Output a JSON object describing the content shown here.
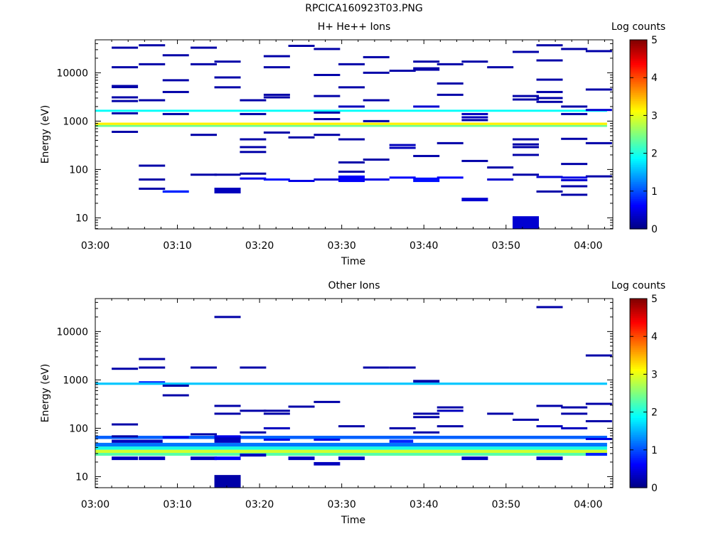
{
  "figure_title": "RPCICA160923T03.PNG",
  "chart_data": [
    {
      "type": "heatmap",
      "title": "H+ He++ Ions",
      "xlabel": "Time",
      "ylabel": "Energy (eV)",
      "x_ticks": [
        "03:00",
        "03:10",
        "03:20",
        "03:30",
        "03:40",
        "03:50",
        "04:00"
      ],
      "x_range_min": [
        0,
        63
      ],
      "y_ticks": [
        "10",
        "100",
        "1000",
        "10000"
      ],
      "y_range_ev": [
        5.9,
        48000
      ],
      "y_scale": "log",
      "colorbar": {
        "label": "Log counts",
        "range": [
          0,
          5
        ],
        "ticks": [
          "0",
          "1",
          "2",
          "3",
          "4",
          "5"
        ]
      },
      "steady_bands": [
        {
          "ev_lo": 830,
          "ev_hi": 930,
          "log_counts": 3.2
        },
        {
          "ev_lo": 760,
          "ev_hi": 830,
          "log_counts": 2.4
        },
        {
          "ev_lo": 1560,
          "ev_hi": 1720,
          "log_counts": 1.9
        }
      ],
      "blocks": [
        {
          "t": 14.5,
          "dt": 3.2,
          "ev_lo": 32,
          "ev_hi": 42,
          "log_counts": 0.3
        },
        {
          "t": 50.8,
          "dt": 3.2,
          "ev_lo": 6,
          "ev_hi": 10.8,
          "log_counts": 0.4
        },
        {
          "t": 44.6,
          "dt": 3.2,
          "ev_lo": 22,
          "ev_hi": 26,
          "log_counts": 0.4
        },
        {
          "t": 8.2,
          "dt": 3.2,
          "ev_lo": 33,
          "ev_hi": 37,
          "log_counts": 0.8
        },
        {
          "t": 38.7,
          "dt": 3.2,
          "ev_lo": 11000,
          "ev_hi": 13000,
          "log_counts": 0.2
        },
        {
          "t": 2.0,
          "dt": 3.2,
          "ev_lo": 4800,
          "ev_hi": 5600,
          "log_counts": 0.2
        },
        {
          "t": 29.6,
          "dt": 3.2,
          "ev_lo": 55,
          "ev_hi": 75,
          "log_counts": 0.6
        },
        {
          "t": 38.7,
          "dt": 3.2,
          "ev_lo": 55,
          "ev_hi": 68,
          "log_counts": 0.7
        }
      ],
      "lines": [
        {
          "t": 2.0,
          "ev": 33000,
          "c": 0.2
        },
        {
          "t": 5.3,
          "ev": 37000,
          "c": 0.2
        },
        {
          "t": 8.2,
          "ev": 23000,
          "c": 0.2
        },
        {
          "t": 11.6,
          "ev": 33000,
          "c": 0.2
        },
        {
          "t": 14.5,
          "ev": 17000,
          "c": 0.2
        },
        {
          "t": 20.5,
          "ev": 22000,
          "c": 0.2
        },
        {
          "t": 23.5,
          "ev": 36000,
          "c": 0.2
        },
        {
          "t": 26.6,
          "ev": 31000,
          "c": 0.2
        },
        {
          "t": 32.6,
          "ev": 21000,
          "c": 0.2
        },
        {
          "t": 38.7,
          "ev": 17000,
          "c": 0.2
        },
        {
          "t": 44.6,
          "ev": 17000,
          "c": 0.2
        },
        {
          "t": 50.8,
          "ev": 27000,
          "c": 0.2
        },
        {
          "t": 53.7,
          "ev": 37000,
          "c": 0.2
        },
        {
          "t": 56.7,
          "ev": 31000,
          "c": 0.2
        },
        {
          "t": 59.7,
          "ev": 28000,
          "c": 0.2
        },
        {
          "t": 2.0,
          "ev": 13000,
          "c": 0.2
        },
        {
          "t": 5.3,
          "ev": 15000,
          "c": 0.2
        },
        {
          "t": 11.6,
          "ev": 15000,
          "c": 0.2
        },
        {
          "t": 20.5,
          "ev": 13000,
          "c": 0.2
        },
        {
          "t": 29.6,
          "ev": 15000,
          "c": 0.2
        },
        {
          "t": 35.8,
          "ev": 11000,
          "c": 0.2
        },
        {
          "t": 41.6,
          "ev": 15000,
          "c": 0.2
        },
        {
          "t": 47.7,
          "ev": 13000,
          "c": 0.2
        },
        {
          "t": 53.7,
          "ev": 18000,
          "c": 0.2
        },
        {
          "t": 8.2,
          "ev": 7000,
          "c": 0.2
        },
        {
          "t": 14.5,
          "ev": 8000,
          "c": 0.2
        },
        {
          "t": 26.6,
          "ev": 9000,
          "c": 0.2
        },
        {
          "t": 32.6,
          "ev": 10000,
          "c": 0.2
        },
        {
          "t": 41.6,
          "ev": 6000,
          "c": 0.2
        },
        {
          "t": 53.7,
          "ev": 7200,
          "c": 0.2
        },
        {
          "t": 8.2,
          "ev": 4000,
          "c": 0.2
        },
        {
          "t": 14.5,
          "ev": 5000,
          "c": 0.2
        },
        {
          "t": 29.6,
          "ev": 5000,
          "c": 0.2
        },
        {
          "t": 41.6,
          "ev": 3500,
          "c": 0.2
        },
        {
          "t": 53.7,
          "ev": 4000,
          "c": 0.2
        },
        {
          "t": 59.7,
          "ev": 4500,
          "c": 0.2
        },
        {
          "t": 2.0,
          "ev": 3100,
          "c": 0.2
        },
        {
          "t": 2.0,
          "ev": 2600,
          "c": 0.2
        },
        {
          "t": 5.3,
          "ev": 2700,
          "c": 0.2
        },
        {
          "t": 17.6,
          "ev": 2700,
          "c": 0.2
        },
        {
          "t": 20.5,
          "ev": 3500,
          "c": 0.2
        },
        {
          "t": 20.5,
          "ev": 3100,
          "c": 0.2
        },
        {
          "t": 26.6,
          "ev": 3300,
          "c": 0.2
        },
        {
          "t": 32.6,
          "ev": 2700,
          "c": 0.2
        },
        {
          "t": 50.8,
          "ev": 3300,
          "c": 0.2
        },
        {
          "t": 50.8,
          "ev": 2800,
          "c": 0.2
        },
        {
          "t": 53.7,
          "ev": 2500,
          "c": 0.2
        },
        {
          "t": 53.7,
          "ev": 3000,
          "c": 0.2
        },
        {
          "t": 29.6,
          "ev": 2000,
          "c": 0.3
        },
        {
          "t": 38.7,
          "ev": 2000,
          "c": 0.4
        },
        {
          "t": 56.7,
          "ev": 2000,
          "c": 0.2
        },
        {
          "t": 2.0,
          "ev": 1450,
          "c": 0.2
        },
        {
          "t": 8.2,
          "ev": 1400,
          "c": 0.2
        },
        {
          "t": 17.6,
          "ev": 1400,
          "c": 0.2
        },
        {
          "t": 26.6,
          "ev": 1500,
          "c": 0.2
        },
        {
          "t": 44.6,
          "ev": 1400,
          "c": 0.3
        },
        {
          "t": 44.6,
          "ev": 1200,
          "c": 0.3
        },
        {
          "t": 56.7,
          "ev": 1400,
          "c": 0.2
        },
        {
          "t": 59.7,
          "ev": 1700,
          "c": 0.4
        },
        {
          "t": 26.6,
          "ev": 1100,
          "c": 0.2
        },
        {
          "t": 32.6,
          "ev": 1000,
          "c": 0.2
        },
        {
          "t": 44.6,
          "ev": 1050,
          "c": 0.2
        },
        {
          "t": 2.0,
          "ev": 600,
          "c": 0.2
        },
        {
          "t": 11.6,
          "ev": 520,
          "c": 0.2
        },
        {
          "t": 17.6,
          "ev": 420,
          "c": 0.2
        },
        {
          "t": 20.5,
          "ev": 580,
          "c": 0.2
        },
        {
          "t": 23.5,
          "ev": 460,
          "c": 0.2
        },
        {
          "t": 26.6,
          "ev": 520,
          "c": 0.2
        },
        {
          "t": 29.6,
          "ev": 420,
          "c": 0.2
        },
        {
          "t": 35.8,
          "ev": 320,
          "c": 0.3
        },
        {
          "t": 35.8,
          "ev": 280,
          "c": 0.3
        },
        {
          "t": 41.6,
          "ev": 350,
          "c": 0.2
        },
        {
          "t": 50.8,
          "ev": 420,
          "c": 0.2
        },
        {
          "t": 50.8,
          "ev": 330,
          "c": 0.2
        },
        {
          "t": 50.8,
          "ev": 290,
          "c": 0.2
        },
        {
          "t": 56.7,
          "ev": 430,
          "c": 0.2
        },
        {
          "t": 59.7,
          "ev": 350,
          "c": 0.2
        },
        {
          "t": 17.6,
          "ev": 290,
          "c": 0.2
        },
        {
          "t": 17.6,
          "ev": 230,
          "c": 0.2
        },
        {
          "t": 38.7,
          "ev": 190,
          "c": 0.2
        },
        {
          "t": 29.6,
          "ev": 140,
          "c": 0.2
        },
        {
          "t": 32.6,
          "ev": 160,
          "c": 0.2
        },
        {
          "t": 44.6,
          "ev": 150,
          "c": 0.2
        },
        {
          "t": 50.8,
          "ev": 200,
          "c": 0.2
        },
        {
          "t": 56.7,
          "ev": 130,
          "c": 0.2
        },
        {
          "t": 5.3,
          "ev": 120,
          "c": 0.2
        },
        {
          "t": 29.6,
          "ev": 90,
          "c": 0.2
        },
        {
          "t": 47.7,
          "ev": 110,
          "c": 0.2
        },
        {
          "t": 11.6,
          "ev": 78,
          "c": 0.2
        },
        {
          "t": 14.5,
          "ev": 78,
          "c": 0.2
        },
        {
          "t": 17.6,
          "ev": 82,
          "c": 0.2
        },
        {
          "t": 50.8,
          "ev": 78,
          "c": 0.2
        },
        {
          "t": 59.7,
          "ev": 72,
          "c": 0.2
        },
        {
          "t": 17.6,
          "ev": 65,
          "c": 0.5
        },
        {
          "t": 20.5,
          "ev": 62,
          "c": 0.7
        },
        {
          "t": 23.5,
          "ev": 58,
          "c": 0.5
        },
        {
          "t": 26.6,
          "ev": 62,
          "c": 0.4
        },
        {
          "t": 32.6,
          "ev": 62,
          "c": 0.5
        },
        {
          "t": 35.8,
          "ev": 68,
          "c": 0.6
        },
        {
          "t": 41.6,
          "ev": 68,
          "c": 0.6
        },
        {
          "t": 47.7,
          "ev": 62,
          "c": 0.4
        },
        {
          "t": 53.7,
          "ev": 70,
          "c": 0.4
        },
        {
          "t": 56.7,
          "ev": 68,
          "c": 0.5
        },
        {
          "t": 56.7,
          "ev": 60,
          "c": 0.4
        },
        {
          "t": 5.3,
          "ev": 62,
          "c": 0.2
        },
        {
          "t": 5.3,
          "ev": 40,
          "c": 0.2
        },
        {
          "t": 56.7,
          "ev": 45,
          "c": 0.2
        },
        {
          "t": 56.7,
          "ev": 30,
          "c": 0.2
        },
        {
          "t": 53.7,
          "ev": 35,
          "c": 0.2
        }
      ]
    },
    {
      "type": "heatmap",
      "title": "Other Ions",
      "xlabel": "Time",
      "ylabel": "Energy (eV)",
      "x_ticks": [
        "03:00",
        "03:10",
        "03:20",
        "03:30",
        "03:40",
        "03:50",
        "04:00"
      ],
      "x_range_min": [
        0,
        63
      ],
      "y_ticks": [
        "10",
        "100",
        "1000",
        "10000"
      ],
      "y_range_ev": [
        5.9,
        48000
      ],
      "y_scale": "log",
      "colorbar": {
        "label": "Log counts",
        "range": [
          0,
          5
        ],
        "ticks": [
          "0",
          "1",
          "2",
          "3",
          "4",
          "5"
        ]
      },
      "steady_bands": [
        {
          "ev_lo": 27,
          "ev_hi": 31,
          "log_counts": 2.3
        },
        {
          "ev_lo": 31,
          "ev_hi": 36,
          "log_counts": 2.9
        },
        {
          "ev_lo": 36,
          "ev_hi": 42,
          "log_counts": 2.0
        },
        {
          "ev_lo": 42,
          "ev_hi": 50,
          "log_counts": 1.2
        },
        {
          "ev_lo": 60,
          "ev_hi": 70,
          "log_counts": 1.1
        },
        {
          "ev_lo": 790,
          "ev_hi": 880,
          "log_counts": 1.6
        }
      ],
      "blocks": [
        {
          "t": 14.5,
          "dt": 3.2,
          "ev_lo": 6,
          "ev_hi": 10.8,
          "log_counts": 0.2
        },
        {
          "t": 2.0,
          "dt": 3.2,
          "ev_lo": 22,
          "ev_hi": 26,
          "log_counts": 0.3
        },
        {
          "t": 5.3,
          "dt": 3.2,
          "ev_lo": 22,
          "ev_hi": 26,
          "log_counts": 0.3
        },
        {
          "t": 11.6,
          "dt": 3.2,
          "ev_lo": 22,
          "ev_hi": 26,
          "log_counts": 0.3
        },
        {
          "t": 14.5,
          "dt": 3.2,
          "ev_lo": 22,
          "ev_hi": 26,
          "log_counts": 0.6
        },
        {
          "t": 17.6,
          "dt": 3.2,
          "ev_lo": 26,
          "ev_hi": 30,
          "log_counts": 0.3
        },
        {
          "t": 23.5,
          "dt": 3.2,
          "ev_lo": 22,
          "ev_hi": 26,
          "log_counts": 0.3
        },
        {
          "t": 29.6,
          "dt": 3.2,
          "ev_lo": 22,
          "ev_hi": 26,
          "log_counts": 0.3
        },
        {
          "t": 26.6,
          "dt": 3.2,
          "ev_lo": 17,
          "ev_hi": 20,
          "log_counts": 0.3
        },
        {
          "t": 44.6,
          "dt": 3.2,
          "ev_lo": 22,
          "ev_hi": 26,
          "log_counts": 0.3
        },
        {
          "t": 53.7,
          "dt": 3.2,
          "ev_lo": 22,
          "ev_hi": 26,
          "log_counts": 0.3
        },
        {
          "t": 59.7,
          "dt": 2.6,
          "ev_lo": 27,
          "ev_hi": 31,
          "log_counts": 0.8
        },
        {
          "t": 2.0,
          "dt": 6.2,
          "ev_lo": 50,
          "ev_hi": 58,
          "log_counts": 0.3
        },
        {
          "t": 14.5,
          "dt": 3.2,
          "ev_lo": 50,
          "ev_hi": 70,
          "log_counts": 0.3
        },
        {
          "t": 35.8,
          "dt": 2.9,
          "ev_lo": 50,
          "ev_hi": 58,
          "log_counts": 0.8
        },
        {
          "t": 38.7,
          "dt": 3.2,
          "ev_lo": 880,
          "ev_hi": 1000,
          "log_counts": 0.2
        },
        {
          "t": 8.2,
          "dt": 3.2,
          "ev_lo": 720,
          "ev_hi": 800,
          "log_counts": 0.2
        },
        {
          "t": 5.3,
          "dt": 3.2,
          "ev_lo": 880,
          "ev_hi": 940,
          "log_counts": 0.8
        }
      ],
      "lines": [
        {
          "t": 14.5,
          "ev": 20000,
          "c": 0.2
        },
        {
          "t": 53.7,
          "ev": 32000,
          "c": 0.2
        },
        {
          "t": 59.7,
          "ev": 3200,
          "c": 0.2
        },
        {
          "t": 5.3,
          "ev": 2700,
          "c": 0.2
        },
        {
          "t": 2.0,
          "ev": 1700,
          "c": 0.2
        },
        {
          "t": 5.3,
          "ev": 1800,
          "c": 0.2
        },
        {
          "t": 11.6,
          "ev": 1800,
          "c": 0.2
        },
        {
          "t": 17.6,
          "ev": 1800,
          "c": 0.2
        },
        {
          "t": 32.6,
          "ev": 1800,
          "c": 0.2
        },
        {
          "t": 35.8,
          "ev": 1800,
          "c": 0.2
        },
        {
          "t": 8.2,
          "ev": 480,
          "c": 0.2
        },
        {
          "t": 14.5,
          "ev": 290,
          "c": 0.2
        },
        {
          "t": 26.6,
          "ev": 350,
          "c": 0.2
        },
        {
          "t": 23.5,
          "ev": 280,
          "c": 0.2
        },
        {
          "t": 41.6,
          "ev": 270,
          "c": 0.2
        },
        {
          "t": 41.6,
          "ev": 230,
          "c": 0.3
        },
        {
          "t": 53.7,
          "ev": 290,
          "c": 0.2
        },
        {
          "t": 56.7,
          "ev": 270,
          "c": 0.2
        },
        {
          "t": 59.7,
          "ev": 320,
          "c": 0.2
        },
        {
          "t": 14.5,
          "ev": 200,
          "c": 0.2
        },
        {
          "t": 17.6,
          "ev": 230,
          "c": 0.2
        },
        {
          "t": 20.5,
          "ev": 230,
          "c": 0.2
        },
        {
          "t": 20.5,
          "ev": 200,
          "c": 0.2
        },
        {
          "t": 38.7,
          "ev": 200,
          "c": 0.2
        },
        {
          "t": 38.7,
          "ev": 170,
          "c": 0.2
        },
        {
          "t": 47.7,
          "ev": 200,
          "c": 0.2
        },
        {
          "t": 56.7,
          "ev": 200,
          "c": 0.2
        },
        {
          "t": 50.8,
          "ev": 150,
          "c": 0.2
        },
        {
          "t": 59.7,
          "ev": 140,
          "c": 0.2
        },
        {
          "t": 2.0,
          "ev": 120,
          "c": 0.2
        },
        {
          "t": 20.5,
          "ev": 100,
          "c": 0.3
        },
        {
          "t": 29.6,
          "ev": 110,
          "c": 0.2
        },
        {
          "t": 35.8,
          "ev": 100,
          "c": 0.2
        },
        {
          "t": 41.6,
          "ev": 110,
          "c": 0.2
        },
        {
          "t": 53.7,
          "ev": 110,
          "c": 0.3
        },
        {
          "t": 56.7,
          "ev": 100,
          "c": 0.3
        },
        {
          "t": 17.6,
          "ev": 82,
          "c": 0.2
        },
        {
          "t": 38.7,
          "ev": 82,
          "c": 0.2
        },
        {
          "t": 2.0,
          "ev": 68,
          "c": 0.2
        },
        {
          "t": 8.2,
          "ev": 65,
          "c": 0.5
        },
        {
          "t": 11.6,
          "ev": 75,
          "c": 0.2
        },
        {
          "t": 14.5,
          "ev": 68,
          "c": 0.5
        },
        {
          "t": 20.5,
          "ev": 58,
          "c": 0.5
        },
        {
          "t": 26.6,
          "ev": 58,
          "c": 0.5
        },
        {
          "t": 59.7,
          "ev": 60,
          "c": 0.5
        }
      ]
    }
  ]
}
